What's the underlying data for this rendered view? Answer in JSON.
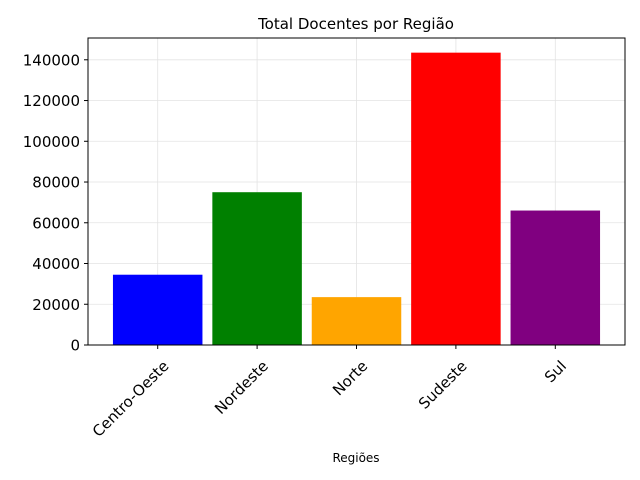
{
  "chart_data": {
    "type": "bar",
    "title": "Total Docentes por Região",
    "xlabel": "Regiões",
    "ylabel": "",
    "categories": [
      "Centro-Oeste",
      "Nordeste",
      "Norte",
      "Sudeste",
      "Sul"
    ],
    "values": [
      34500,
      75000,
      23500,
      143500,
      66000
    ],
    "colors": [
      "#0000ff",
      "#008000",
      "#ffa500",
      "#ff0000",
      "#800080"
    ],
    "ylim": [
      0,
      150696
    ],
    "yticks": [
      0,
      20000,
      40000,
      60000,
      80000,
      100000,
      120000,
      140000
    ],
    "grid": true,
    "legend": "none"
  }
}
